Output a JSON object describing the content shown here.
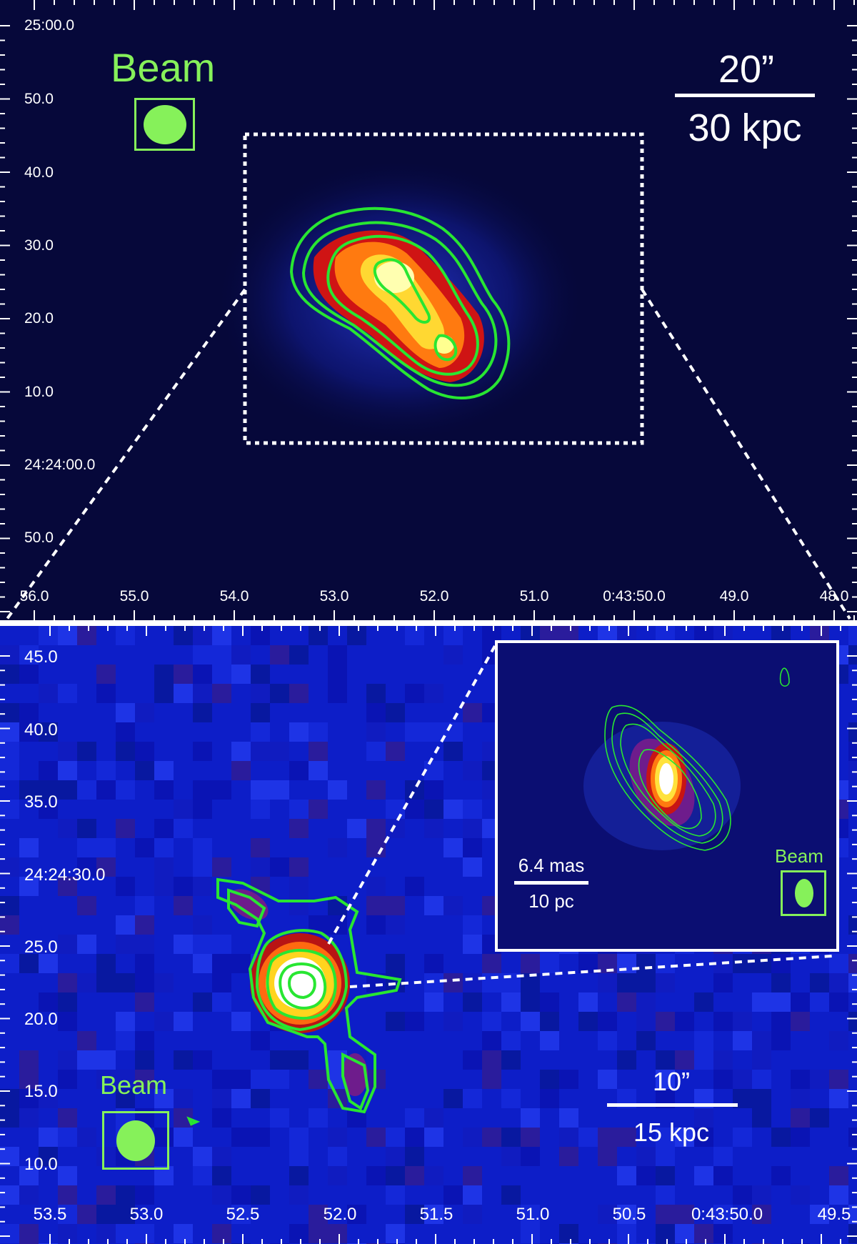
{
  "top_panel": {
    "y_ticks": [
      "25:00.0",
      "50.0",
      "40.0",
      "30.0",
      "20.0",
      "10.0",
      "24:24:00.0",
      "50.0"
    ],
    "x_ticks": [
      "56.0",
      "55.0",
      "54.0",
      "53.0",
      "52.0",
      "51.0",
      "0:43:50.0",
      "49.0",
      "48.0"
    ],
    "beam_label": "Beam",
    "scale_angle": "20”",
    "scale_distance": "30 kpc"
  },
  "bottom_panel": {
    "y_ticks": [
      "45.0",
      "40.0",
      "35.0",
      "24:24:30.0",
      "25.0",
      "20.0",
      "15.0",
      "10.0"
    ],
    "x_ticks": [
      "53.5",
      "53.0",
      "52.5",
      "52.0",
      "51.5",
      "51.0",
      "50.5",
      "0:43:50.0",
      "49.5"
    ],
    "beam_label": "Beam",
    "scale_angle": "10”",
    "scale_distance": "15 kpc"
  },
  "inset": {
    "beam_label": "Beam",
    "scale_angle": "6.4 mas",
    "scale_distance": "10 pc"
  },
  "colors": {
    "contour": "#28e632",
    "beam": "#86f15a",
    "top_background": "#06083a",
    "bottom_background": "#0d1ec8"
  }
}
